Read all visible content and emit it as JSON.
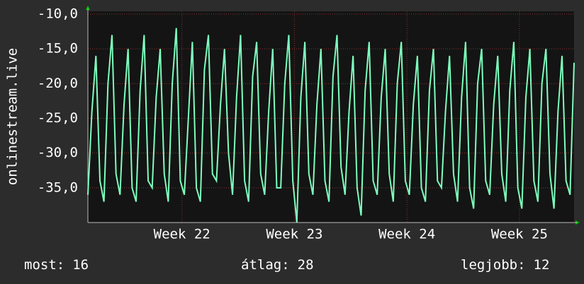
{
  "chart_data": {
    "type": "line",
    "ylabel": "onlinestream.live",
    "ylim": [
      -40,
      -10
    ],
    "yticks": [
      {
        "value": -10,
        "label": "-10,0"
      },
      {
        "value": -15,
        "label": "-15,0"
      },
      {
        "value": -20,
        "label": "-20,0"
      },
      {
        "value": -25,
        "label": "-25,0"
      },
      {
        "value": -30,
        "label": "-30,0"
      },
      {
        "value": -35,
        "label": "-35,0"
      }
    ],
    "xlim": [
      0,
      121
    ],
    "xticks": [
      {
        "value": 23.4,
        "label": "Week 22"
      },
      {
        "value": 51.4,
        "label": "Week 23"
      },
      {
        "value": 79.4,
        "label": "Week 24"
      },
      {
        "value": 107.4,
        "label": "Week 25"
      }
    ],
    "grid": true,
    "series": [
      {
        "color": "#7dffbe",
        "values": [
          -36,
          -24,
          -16,
          -34,
          -37,
          -20,
          -13,
          -33,
          -36,
          -23,
          -15,
          -35,
          -37,
          -21,
          -13,
          -34,
          -35,
          -22,
          -15,
          -33,
          -37,
          -20,
          -12,
          -34,
          -36,
          -25,
          -14,
          -35,
          -37,
          -18,
          -13,
          -33,
          -34,
          -23,
          -15,
          -30,
          -36,
          -22,
          -13,
          -34,
          -37,
          -19,
          -14,
          -33,
          -36,
          -24,
          -15,
          -35,
          -35,
          -20,
          -13,
          -34,
          -40,
          -22,
          -14,
          -33,
          -36,
          -23,
          -15,
          -34,
          -37,
          -19,
          -13,
          -32,
          -36,
          -24,
          -16,
          -35,
          -39,
          -21,
          -14,
          -34,
          -36,
          -22,
          -15,
          -33,
          -37,
          -20,
          -14,
          -34,
          -36,
          -23,
          -16,
          -35,
          -37,
          -21,
          -15,
          -34,
          -35,
          -24,
          -16,
          -33,
          -37,
          -22,
          -14,
          -35,
          -38,
          -20,
          -15,
          -34,
          -36,
          -23,
          -16,
          -33,
          -37,
          -21,
          -14,
          -35,
          -38,
          -22,
          -15,
          -34,
          -37,
          -20,
          -15,
          -33,
          -38,
          -24,
          -16,
          -34,
          -36,
          -17
        ]
      }
    ],
    "footer": [
      {
        "label": "most:",
        "value": 16
      },
      {
        "label": "átlag:",
        "value": 28
      },
      {
        "label": "legjobb:",
        "value": 12
      }
    ]
  }
}
